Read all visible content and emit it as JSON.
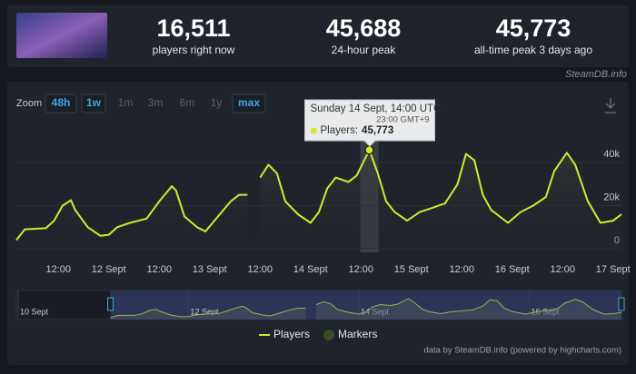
{
  "header": {
    "stats": [
      {
        "value": "16,511",
        "label": "players right now"
      },
      {
        "value": "45,688",
        "label": "24-hour peak"
      },
      {
        "value": "45,773",
        "label": "all-time peak 3 days ago"
      }
    ],
    "site": "SteamDB.info"
  },
  "zoom": {
    "label": "Zoom",
    "options": [
      {
        "text": "48h",
        "active": true
      },
      {
        "text": "1w",
        "active": true
      },
      {
        "text": "1m",
        "active": false
      },
      {
        "text": "3m",
        "active": false
      },
      {
        "text": "6m",
        "active": false
      },
      {
        "text": "1y",
        "active": false
      },
      {
        "text": "max",
        "active": true
      }
    ]
  },
  "chart_data": {
    "type": "line",
    "series": [
      {
        "name": "Players",
        "color": "#d4ea2a",
        "x": [
          -22,
          -20,
          -15,
          -13,
          -11,
          -9,
          -8,
          -5,
          -2,
          0,
          2,
          5,
          9,
          12,
          15,
          16,
          18,
          21,
          23,
          26,
          29,
          31,
          33,
          34,
          36,
          38,
          40,
          42,
          45,
          48,
          50,
          52,
          54,
          57,
          59,
          62,
          64,
          66,
          68,
          71,
          74,
          77,
          80,
          83,
          85,
          87,
          89,
          91,
          95,
          98,
          101,
          104,
          106,
          109,
          111,
          114,
          117,
          120,
          122
        ],
        "values": [
          4000,
          9000,
          9500,
          13000,
          20000,
          22500,
          18000,
          10000,
          6000,
          6500,
          10000,
          12000,
          14000,
          22000,
          29000,
          27000,
          15000,
          10000,
          8000,
          15000,
          22000,
          25000,
          25000,
          null,
          33000,
          39000,
          35000,
          22000,
          16000,
          12000,
          17000,
          28000,
          33000,
          31000,
          34000,
          45773,
          35000,
          22000,
          17000,
          13000,
          17000,
          19000,
          21000,
          30000,
          44000,
          41000,
          25000,
          18000,
          12000,
          17000,
          20000,
          24000,
          36000,
          44500,
          39000,
          22000,
          12000,
          13000,
          16000
        ]
      },
      {
        "name": "Markers",
        "color": "#3d4a2c"
      }
    ],
    "xlim": [
      -22,
      122
    ],
    "xticks": [
      {
        "value": -12,
        "label": "12:00"
      },
      {
        "value": 0,
        "label": "12 Sept"
      },
      {
        "value": 12,
        "label": "12:00"
      },
      {
        "value": 24,
        "label": "13 Sept"
      },
      {
        "value": 36,
        "label": "12:00"
      },
      {
        "value": 48,
        "label": "14 Sept"
      },
      {
        "value": 60,
        "label": "12:00"
      },
      {
        "value": 72,
        "label": "15 Sept"
      },
      {
        "value": 84,
        "label": "12:00"
      },
      {
        "value": 96,
        "label": "16 Sept"
      },
      {
        "value": 108,
        "label": "12:00"
      },
      {
        "value": 120,
        "label": "17 Sept"
      }
    ],
    "ylim": [
      0,
      56000
    ],
    "yticks": [
      0,
      {
        "value": 20000,
        "label": "20k"
      },
      {
        "value": 40000,
        "label": "40k"
      }
    ],
    "grid": true,
    "tooltip": {
      "title": "Sunday 14 Sept, 14:00 UTC",
      "local_time": "23:00 GMT+9",
      "series_label": "Players:",
      "value_label": "45,773"
    },
    "navigator": {
      "xlim": [
        -48.5,
        122
      ],
      "xticks": [
        {
          "value": -48,
          "label": "10 Sept"
        },
        {
          "value": 0,
          "label": "12 Sept"
        },
        {
          "value": 48,
          "label": "14 Sept"
        },
        {
          "value": 96,
          "label": "16 Sept"
        }
      ]
    },
    "credit": "data by SteamDB.info (powered by highcharts.com)"
  }
}
